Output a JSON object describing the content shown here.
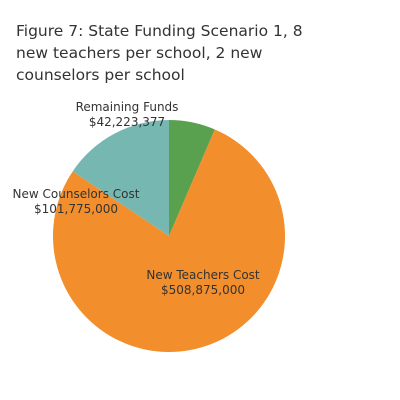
{
  "chart_data": {
    "type": "pie",
    "title": "Figure 7: State Funding Scenario 1, 8 new teachers per school, 2 new counselors per school",
    "slices": [
      {
        "label": "Remaining Funds",
        "value": 42223377,
        "value_label": "$42,223,377",
        "color": "#59A14F"
      },
      {
        "label": "New Teachers Cost",
        "value": 508875000,
        "value_label": "$508,875,000",
        "color": "#F28E2B"
      },
      {
        "label": "New Counselors Cost",
        "value": 101775000,
        "value_label": "$101,775,000",
        "color": "#76B7B2"
      }
    ],
    "legend": "none"
  }
}
